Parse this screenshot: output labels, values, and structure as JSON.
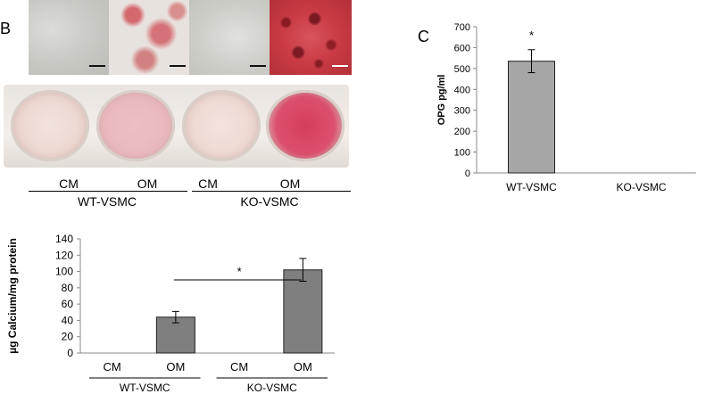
{
  "panel_b_label": "B",
  "panel_c_label": "C",
  "image_conditions": [
    "CM",
    "OM",
    "CM",
    "OM"
  ],
  "image_groups": [
    "WT-VSMC",
    "KO-VSMC"
  ],
  "chart_data": [
    {
      "id": "calcium",
      "type": "bar",
      "categories": [
        "CM",
        "OM",
        "CM",
        "OM"
      ],
      "groups": [
        {
          "label": "WT-VSMC",
          "categories": [
            0,
            1
          ]
        },
        {
          "label": "KO-VSMC",
          "categories": [
            2,
            3
          ]
        }
      ],
      "values": [
        0,
        44,
        0,
        102
      ],
      "errors": [
        0,
        7,
        0,
        14
      ],
      "ylabel": "µg Calcium/mg protein",
      "ylim": [
        0,
        140
      ],
      "yticks": [
        0,
        20,
        40,
        60,
        80,
        100,
        120,
        140
      ],
      "annotations": [
        {
          "text": "*",
          "between": [
            1,
            3
          ]
        }
      ],
      "bar_color": "#7f7f7f",
      "grid": false
    },
    {
      "id": "opg",
      "type": "bar",
      "categories": [
        "WT-VSMC",
        "KO-VSMC"
      ],
      "values": [
        535,
        0
      ],
      "errors": [
        55,
        0
      ],
      "ylabel": "OPG pg/ml",
      "ylim": [
        0,
        700
      ],
      "yticks": [
        0,
        100,
        200,
        300,
        400,
        500,
        600,
        700
      ],
      "annotations": [
        {
          "text": "*",
          "over": 0
        }
      ],
      "bar_color": "#a6a6a6",
      "grid": false
    }
  ]
}
